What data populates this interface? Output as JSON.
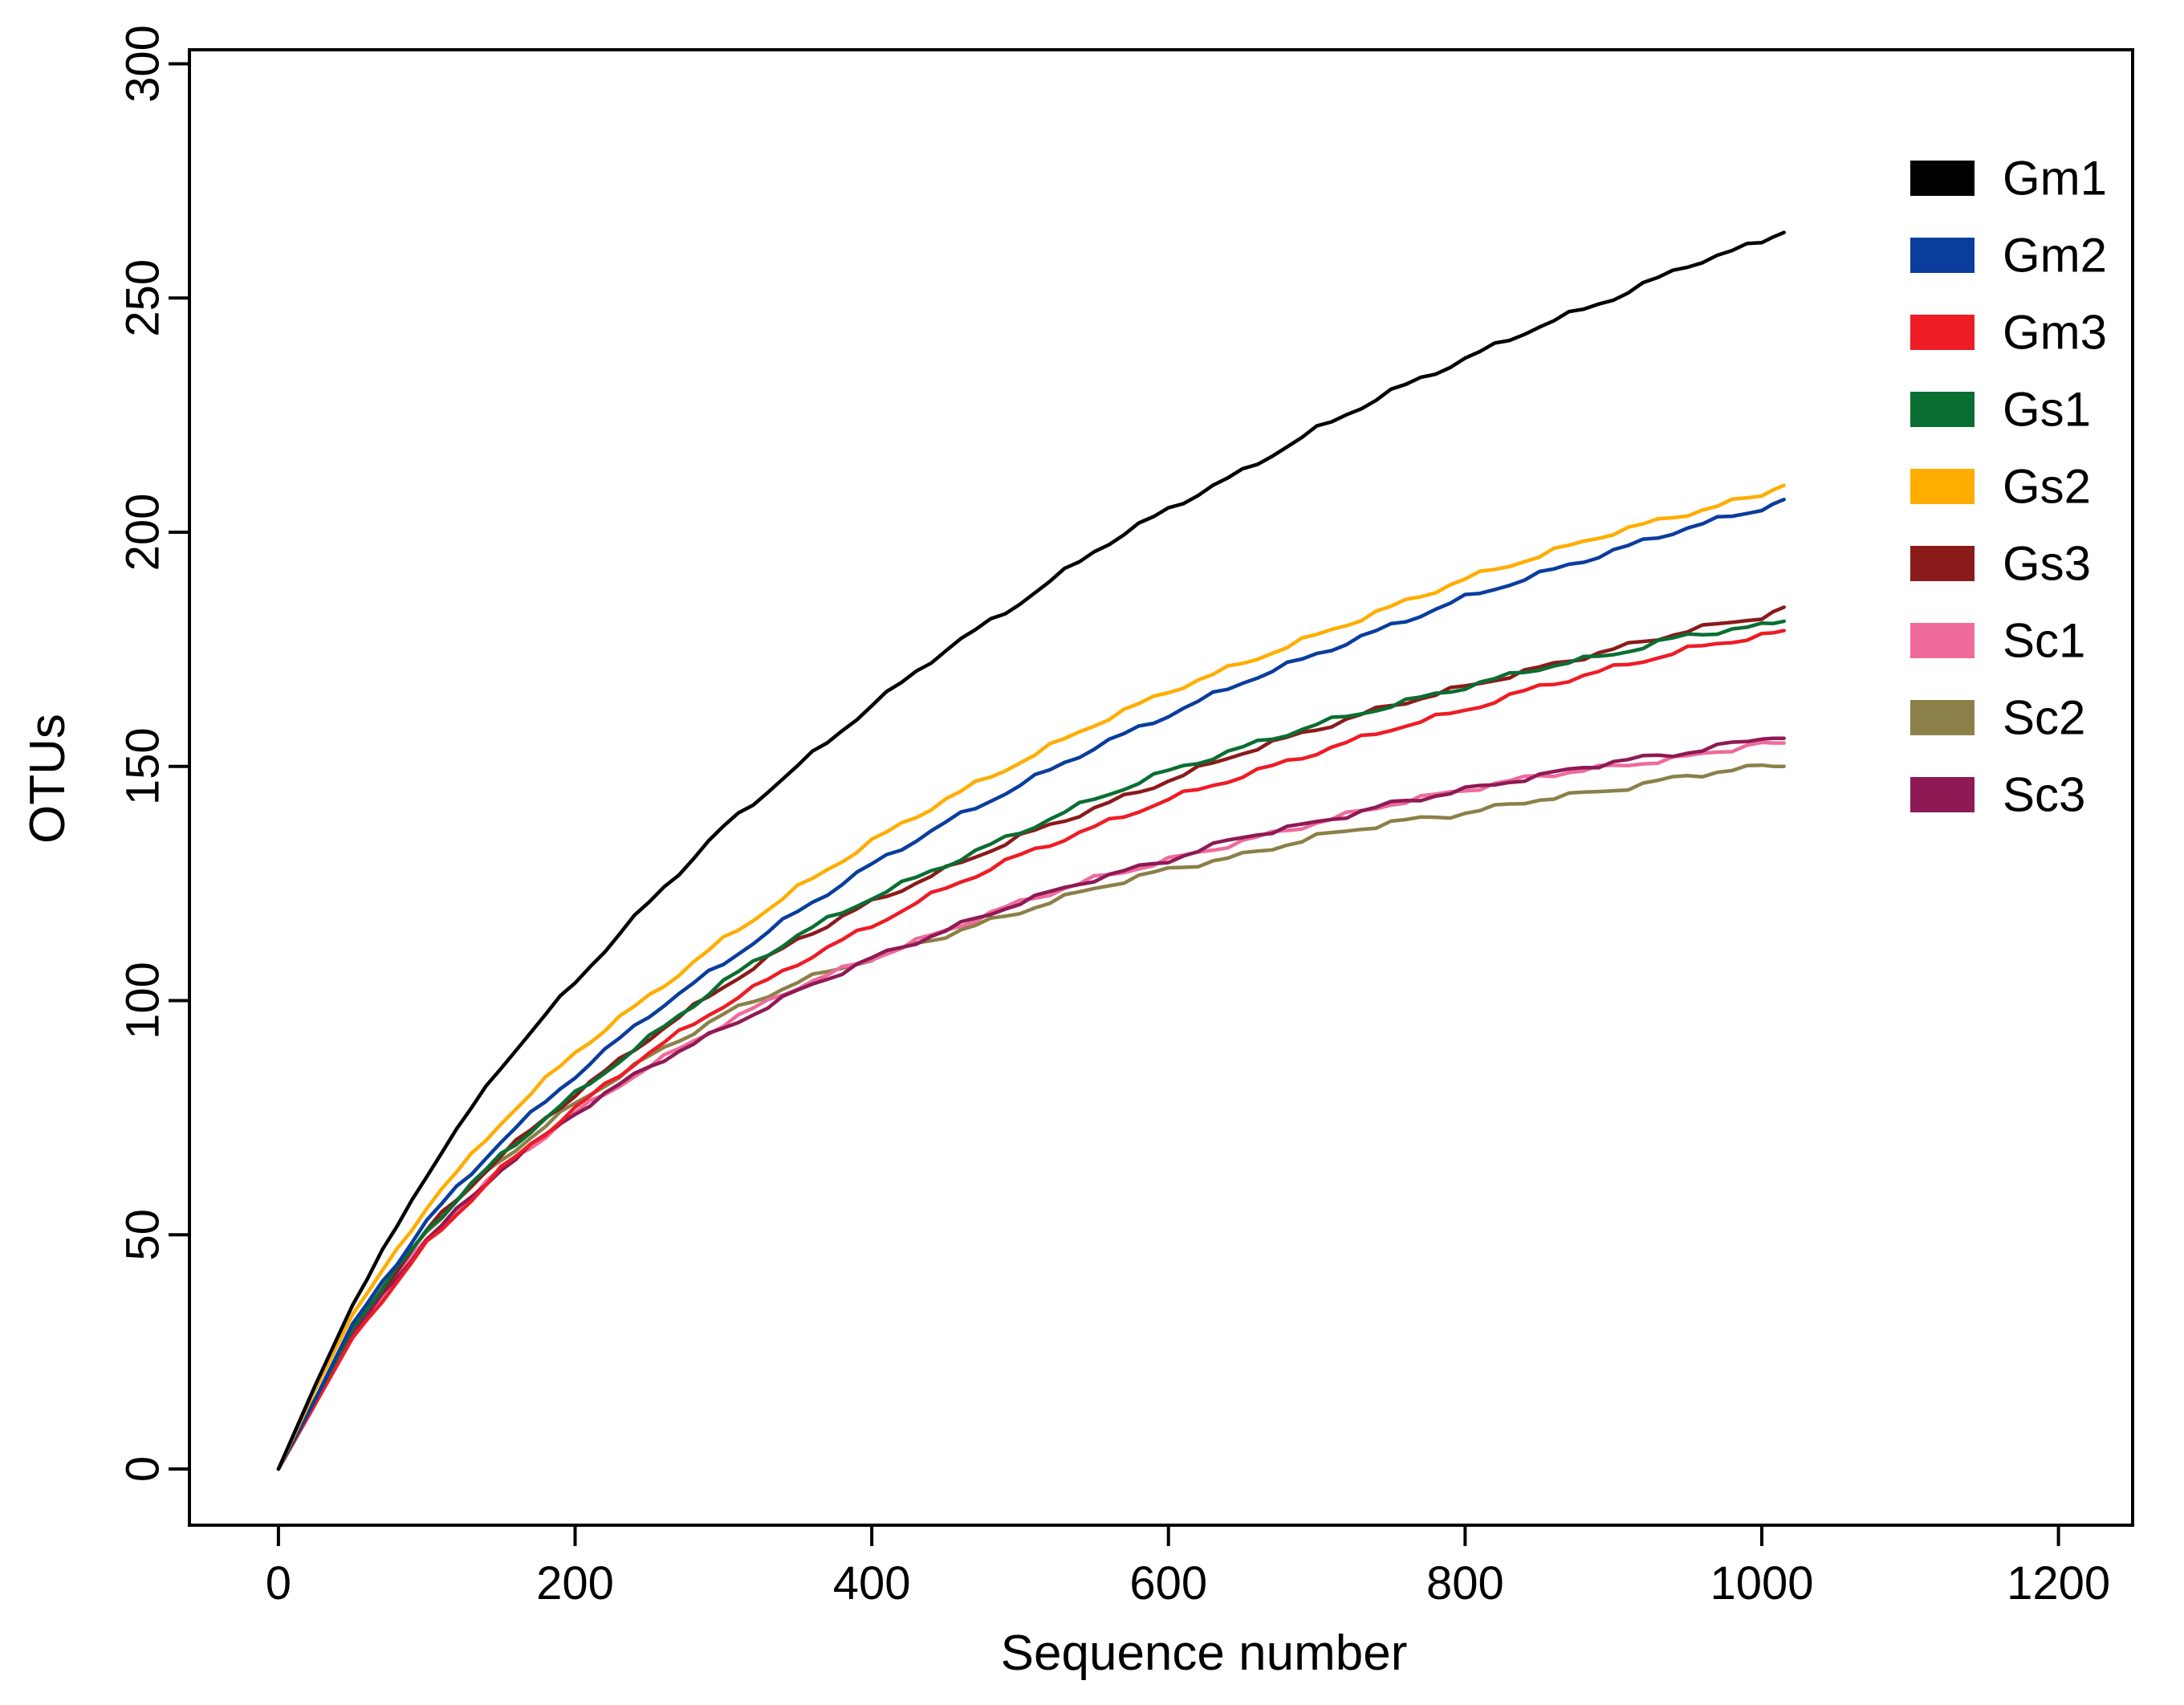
{
  "chart_data": {
    "type": "line",
    "title": "",
    "xlabel": "Sequence number",
    "ylabel": "OTUs",
    "xlim": [
      -60,
      1250
    ],
    "ylim": [
      -12,
      303
    ],
    "xticks": [
      0,
      200,
      400,
      600,
      800,
      1000,
      1200
    ],
    "yticks": [
      0,
      50,
      100,
      150,
      200,
      250,
      300
    ],
    "grid": false,
    "legend_position": "top-right",
    "x": [
      0,
      25,
      50,
      100,
      150,
      200,
      250,
      300,
      350,
      400,
      450,
      500,
      550,
      600,
      650,
      700,
      750,
      800,
      850,
      900,
      950,
      1000,
      1015
    ],
    "series": [
      {
        "name": "Gm1",
        "color": "#000000",
        "values": [
          0,
          18,
          35,
          63,
          86,
          104,
          121,
          137,
          150,
          163,
          175,
          185,
          196,
          205,
          213,
          222,
          230,
          237,
          244,
          250,
          257,
          262,
          264
        ]
      },
      {
        "name": "Gm2",
        "color": "#0a3d9e",
        "values": [
          0,
          15,
          31,
          53,
          70,
          84,
          97,
          108,
          119,
          129,
          138,
          146,
          154,
          161,
          168,
          174,
          180,
          186,
          191,
          196,
          201,
          205,
          207
        ]
      },
      {
        "name": "Gm3",
        "color": "#ee1c25",
        "values": [
          0,
          14,
          28,
          48,
          64,
          77,
          89,
          99,
          108,
          116,
          124,
          131,
          137,
          143,
          148,
          153,
          158,
          162,
          167,
          171,
          175,
          178,
          179
        ]
      },
      {
        "name": "Gs1",
        "color": "#0a6e32",
        "values": [
          0,
          15,
          30,
          51,
          67,
          80,
          92,
          104,
          114,
          122,
          129,
          136,
          143,
          149,
          154,
          159,
          163,
          167,
          171,
          174,
          178,
          180,
          181
        ]
      },
      {
        "name": "Gs2",
        "color": "#ffad00",
        "values": [
          0,
          17,
          33,
          56,
          74,
          89,
          101,
          113,
          124,
          134,
          143,
          151,
          159,
          166,
          172,
          178,
          184,
          190,
          195,
          200,
          204,
          208,
          210
        ]
      },
      {
        "name": "Gs3",
        "color": "#8b1a1a",
        "values": [
          0,
          15,
          30,
          51,
          67,
          80,
          92,
          103,
          113,
          121,
          128,
          135,
          141,
          147,
          153,
          158,
          163,
          167,
          171,
          175,
          179,
          182,
          184
        ]
      },
      {
        "name": "Sc1",
        "color": "#ef6b9c",
        "values": [
          0,
          14,
          29,
          49,
          64,
          76,
          86,
          95,
          103,
          109,
          115,
          121,
          126,
          130,
          134,
          138,
          142,
          145,
          148,
          150,
          152,
          155,
          155
        ]
      },
      {
        "name": "Sc2",
        "color": "#8b8048",
        "values": [
          0,
          15,
          30,
          51,
          66,
          78,
          88,
          97,
          104,
          109,
          114,
          119,
          124,
          128,
          131,
          135,
          138,
          140,
          143,
          145,
          148,
          150,
          150
        ]
      },
      {
        "name": "Sc3",
        "color": "#8e1a55",
        "values": [
          0,
          14,
          29,
          49,
          64,
          76,
          86,
          94,
          102,
          109,
          115,
          121,
          126,
          130,
          135,
          138,
          142,
          145,
          148,
          151,
          153,
          156,
          156
        ]
      }
    ]
  }
}
